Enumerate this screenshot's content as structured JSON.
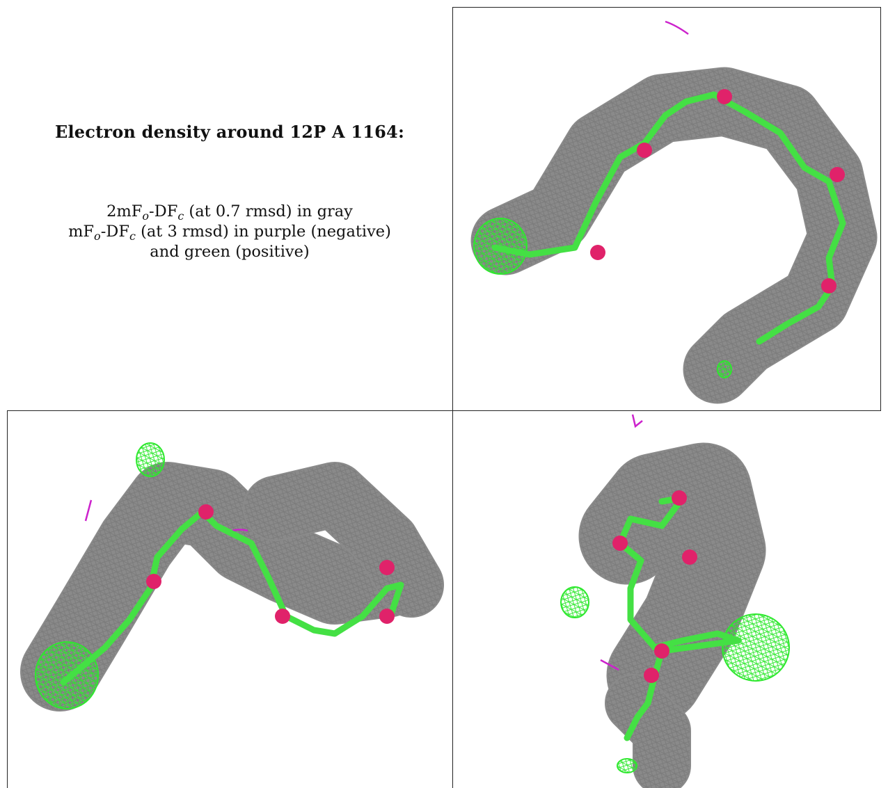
{
  "caption": {
    "title": "Electron density around 12P A 1164:",
    "line1": {
      "pre": "2mF",
      "sub1": "o",
      "mid": "-DF",
      "sub2": "c",
      "post": " (at 0.7 rmsd) in gray"
    },
    "line2": {
      "pre": "mF",
      "sub1": "o",
      "mid": "-DF",
      "sub2": "c",
      "post": " (at 3 rmsd) in purple (negative)"
    },
    "line3": "and green (positive)"
  },
  "colors": {
    "mesh_2fofc": "#8a8a8a",
    "mesh_fofc_positive": "#2ee82e",
    "mesh_fofc_negative": "#cc22cc",
    "carbon": "#44e044",
    "oxygen": "#e0226a",
    "grid_line": "#222222"
  },
  "panels": [
    {
      "id": "caption"
    },
    {
      "id": "view-top-right"
    },
    {
      "id": "view-bottom-left"
    },
    {
      "id": "view-bottom-right"
    }
  ]
}
